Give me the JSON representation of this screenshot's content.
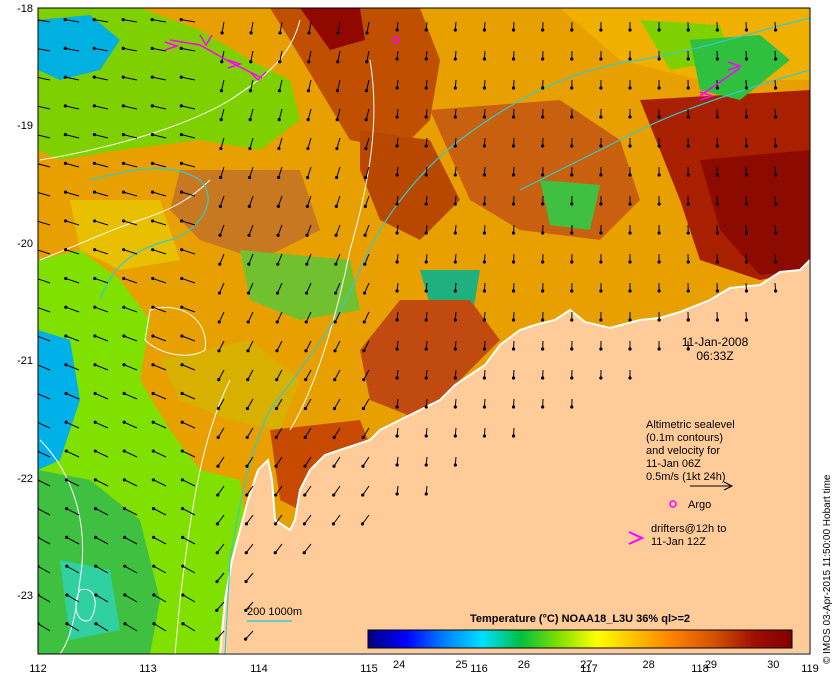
{
  "map": {
    "lon_ticks": [
      "112",
      "113",
      "114",
      "115",
      "116",
      "117",
      "118",
      "119"
    ],
    "lat_ticks": [
      "-18",
      "-19",
      "-20",
      "-21",
      "-22",
      "-23"
    ],
    "lon_range": [
      112,
      119
    ],
    "lat_range": [
      -23.5,
      -18
    ]
  },
  "annotation": {
    "date": "11-Jan-2008",
    "time": "06:33Z",
    "legend_line1": "Altimetric sealevel",
    "legend_line2": "(0.1m contours)",
    "legend_line3": "and velocity for",
    "legend_line4": "11-Jan 06Z",
    "legend_line5": "0.5m/s (1kt 24h)",
    "argo_label": "Argo",
    "drifters_line1": "drifters@12h to",
    "drifters_line2": "11-Jan 12Z",
    "isobath_label": "200  1000m"
  },
  "colorbar": {
    "title": "Temperature (°C) NOAA18_L3U 36% ql>=2",
    "ticks": [
      "24",
      "25",
      "26",
      "27",
      "28",
      "29",
      "30"
    ],
    "range": [
      23.5,
      30.3
    ],
    "colors": [
      "#00007f",
      "#0000ff",
      "#0080ff",
      "#00e0ff",
      "#00c040",
      "#80e000",
      "#ffff00",
      "#ffc000",
      "#ff8000",
      "#d05000",
      "#a01000",
      "#800000"
    ]
  },
  "credit": "© IMOS 03-Apr-2015 11:50:00 Hobart time",
  "colors": {
    "land": "#ffcc99",
    "drifter": "#ff00ff",
    "isobath": "#33cccc",
    "contour": "#ffffff"
  }
}
